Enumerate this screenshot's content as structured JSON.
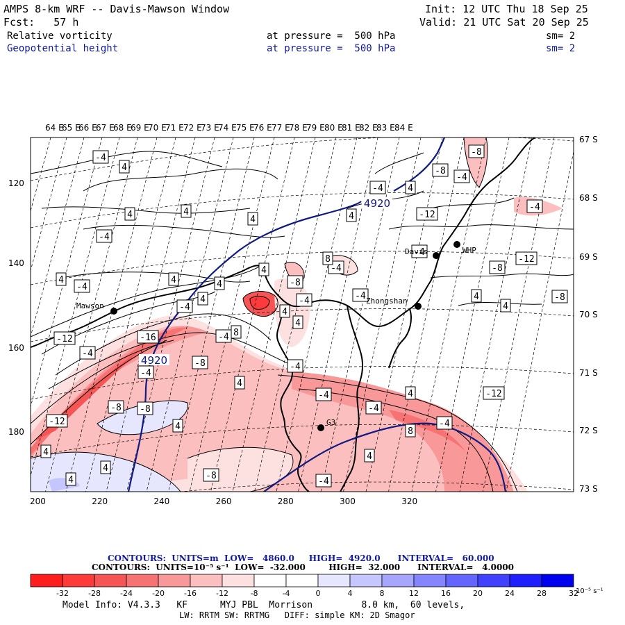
{
  "header": {
    "title": "AMPS 8-km WRF -- Davis-Mawson Window",
    "init": "Init: 12 UTC Thu 18 Sep 25",
    "forecast": "Fcst:   57 h",
    "valid": "Valid: 21 UTC Sat 20 Sep 25",
    "field1": {
      "name": "Relative vorticity",
      "level": "at pressure =  500 hPa",
      "smoothing": "sm= 2"
    },
    "field2": {
      "name": "Geopotential height",
      "level": "at pressure =  500 hPa",
      "smoothing": "sm= 2"
    }
  },
  "axes": {
    "longitudes": [
      "64 E",
      "65 E",
      "66 E",
      "67 E",
      "68 E",
      "69 E",
      "70 E",
      "71 E",
      "72 E",
      "73 E",
      "74 E",
      "75 E",
      "76 E",
      "77 E",
      "78 E",
      "79 E",
      "80 E",
      "81 E",
      "82 E",
      "83 E",
      "84 E"
    ],
    "latitudes": [
      "67 S",
      "68 S",
      "69 S",
      "70 S",
      "71 S",
      "72 S",
      "73 S"
    ],
    "x_grid": [
      "200",
      "220",
      "240",
      "260",
      "280",
      "300",
      "320"
    ],
    "y_grid": [
      "120",
      "140",
      "160",
      "180"
    ]
  },
  "stations": [
    {
      "name": "Mawson"
    },
    {
      "name": "Davis"
    },
    {
      "name": "WHP"
    },
    {
      "name": "Zhongshan"
    },
    {
      "name": "G3"
    }
  ],
  "height_contours": [
    {
      "label": "4920"
    },
    {
      "label": "4920"
    }
  ],
  "vorticity_labels": [
    "-4",
    "4",
    "-8",
    "-4",
    "4",
    "-4",
    "4",
    "4",
    "4",
    "-4",
    "4",
    "4",
    "4",
    "-8",
    "-4",
    "-4",
    "4",
    "4",
    "-8",
    "-4",
    "4",
    "-4",
    "-12",
    "-4",
    "-16",
    "-4",
    "-8",
    "-4",
    "4",
    "-4",
    "4",
    "-12",
    "-4",
    "-8",
    "-8",
    "-4",
    "4",
    "8",
    "-12",
    "4",
    "-8",
    "4",
    "4",
    "-4",
    "4",
    "4",
    "8",
    "4",
    "4",
    "-4",
    "-12",
    "-8",
    "-12",
    "-8",
    "4",
    "8",
    "-4",
    "-4",
    "-4"
  ],
  "footer": {
    "contours_height": "CONTOURS:  UNITS=m  LOW=   4860.0     HIGH=  4920.0      INTERVAL=   60.000",
    "contours_vort": "CONTOURS:  UNITS=10⁻⁵ s⁻¹  LOW=  -32.000        HIGH=  32.000      INTERVAL=   4.0000",
    "colorbar_ticks": [
      "-32",
      "-28",
      "-24",
      "-20",
      "-16",
      "-12",
      "-8",
      "-4",
      "0",
      "4",
      "8",
      "12",
      "16",
      "20",
      "24",
      "28",
      "32"
    ],
    "colorbar_unit": "10⁻⁵ s⁻¹",
    "model_info1": "Model Info: V4.3.3   KF      MYJ PBL  Morrison         8.0 km,  60 levels,",
    "model_info2": "LW: RRTM SW: RRTMG   DIFF: simple KM: 2D Smagor"
  },
  "colors": {
    "reds": [
      "#ff1e1e",
      "#ff3a3a",
      "#f65555",
      "#f77373",
      "#f89898",
      "#fbbfbf",
      "#fde1e1"
    ],
    "white": "#ffffff",
    "blues": [
      "#e6e6ff",
      "#c6c6ff",
      "#a6a6ff",
      "#8585ff",
      "#6464ff",
      "#4040ff",
      "#1e1eff",
      "#0000f0"
    ],
    "height_line": "#101a80"
  }
}
